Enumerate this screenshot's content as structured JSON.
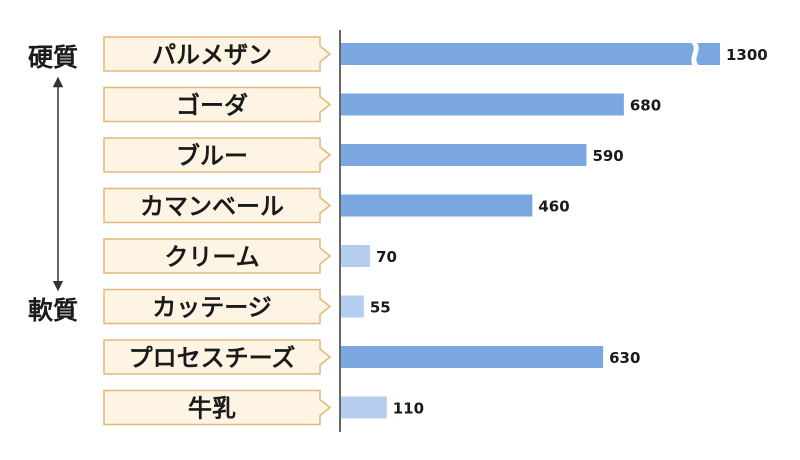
{
  "side_labels": {
    "hard": "硬質",
    "soft": "軟質"
  },
  "colors": {
    "bar_main": "#7aa7e0",
    "bar_light": "#b5cdf0",
    "label_fill": "#fdf4e4",
    "label_border": "#e3b87a",
    "axis": "#333333",
    "text": "#1a1a1a"
  },
  "chart_data": {
    "type": "bar",
    "orientation": "horizontal",
    "categories": [
      "パルメザン",
      "ゴーダ",
      "ブルー",
      "カマンベール",
      "クリーム",
      "カッテージ",
      "プロセスチーズ",
      "牛乳"
    ],
    "values": [
      1300,
      680,
      590,
      460,
      70,
      55,
      630,
      110
    ],
    "value_labels": [
      "1300",
      "680",
      "590",
      "460",
      "70",
      "55",
      "630",
      "110"
    ],
    "light_categories": [
      "クリーム",
      "カッテージ",
      "牛乳"
    ],
    "axis_break": {
      "category": "パルメザン"
    },
    "title": "",
    "xlabel": "",
    "ylabel": ""
  }
}
